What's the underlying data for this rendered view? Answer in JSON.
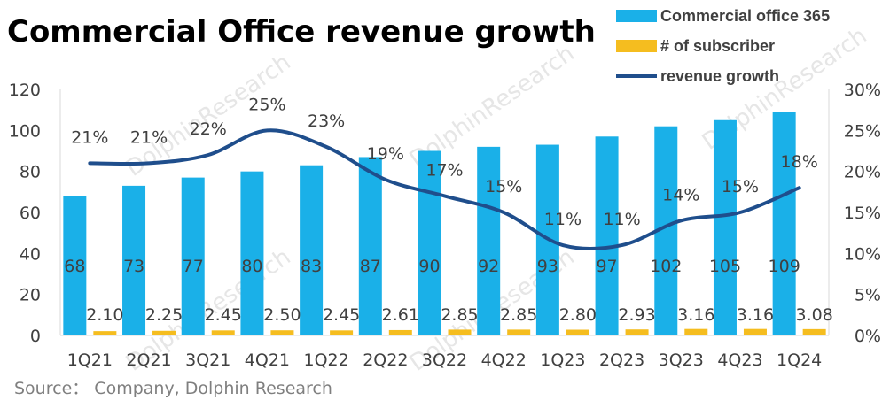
{
  "chart_data": {
    "type": "bar",
    "title": "Commercial Office revenue growth",
    "source": "Source： Company, Dolphin Research",
    "watermark": "DolphinResearch",
    "categories": [
      "1Q21",
      "2Q21",
      "3Q21",
      "4Q21",
      "1Q22",
      "2Q22",
      "3Q22",
      "4Q22",
      "1Q23",
      "2Q23",
      "3Q23",
      "4Q23",
      "1Q24"
    ],
    "series": [
      {
        "name": "Commercial office 365",
        "type": "bar",
        "axis": "left",
        "color": "#1AB0E8",
        "values": [
          68,
          73,
          77,
          80,
          83,
          87,
          90,
          92,
          93,
          97,
          102,
          105,
          109
        ],
        "labels": [
          "68",
          "73",
          "77",
          "80",
          "83",
          "87",
          "90",
          "92",
          "93",
          "97",
          "102",
          "105",
          "109"
        ]
      },
      {
        "name": "# of subscriber",
        "type": "bar",
        "axis": "left",
        "color": "#F5BD1F",
        "values": [
          2.1,
          2.25,
          2.45,
          2.5,
          2.45,
          2.61,
          2.85,
          2.85,
          2.8,
          2.93,
          3.16,
          3.16,
          3.08
        ],
        "labels": [
          "2.10",
          "2.25",
          "2.45",
          "2.50",
          "2.45",
          "2.61",
          "2.85",
          "2.85",
          "2.80",
          "2.93",
          "3.16",
          "3.16",
          "3.08"
        ]
      },
      {
        "name": "revenue growth",
        "type": "line",
        "axis": "right",
        "color": "#1F4E8C",
        "values": [
          21,
          21,
          22,
          25,
          23,
          19,
          17,
          15,
          11,
          11,
          14,
          15,
          18
        ],
        "labels": [
          "21%",
          "21%",
          "22%",
          "25%",
          "23%",
          "19%",
          "17%",
          "15%",
          "11%",
          "11%",
          "14%",
          "15%",
          "18%"
        ]
      }
    ],
    "y_left": {
      "min": 0,
      "max": 120,
      "step": 20,
      "ticks": [
        "0",
        "20",
        "40",
        "60",
        "80",
        "100",
        "120"
      ]
    },
    "y_right": {
      "min": 0,
      "max": 30,
      "step": 5,
      "ticks": [
        "0%",
        "5%",
        "10%",
        "15%",
        "20%",
        "25%",
        "30%"
      ]
    },
    "grid": false,
    "legend_position": "top-right"
  }
}
